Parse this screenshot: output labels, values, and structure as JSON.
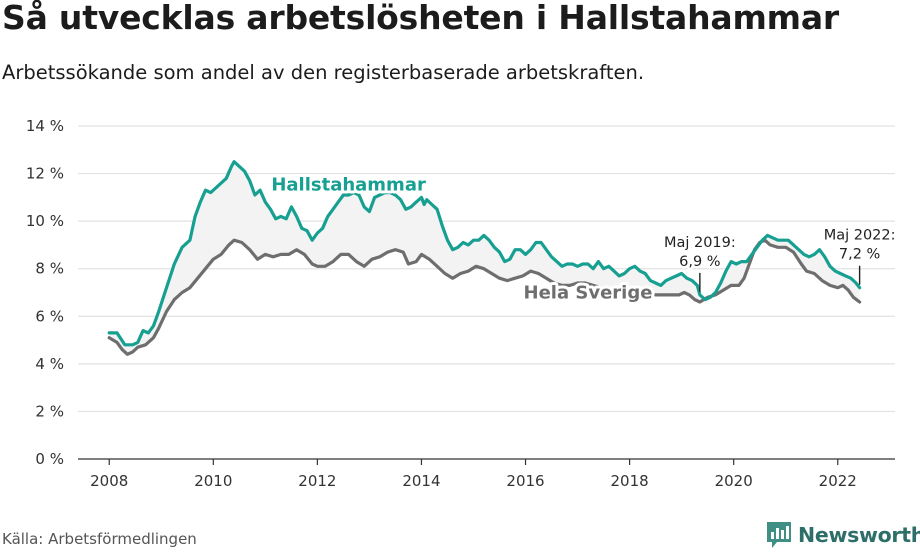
{
  "title": "Så utvecklas arbetslösheten i Hallstahammar",
  "subtitle": "Arbetssökande som andel av den registerbaserade arbetskraften.",
  "source": "Källa: Arbetsförmedlingen",
  "brand": "Newsworthy",
  "colors": {
    "local": "#17a092",
    "national": "#6e6e6e",
    "fill": "#f3f3f3",
    "grid": "#e2e2e2",
    "brand": "#2d6e68"
  },
  "chart_data": {
    "type": "line",
    "title": "Så utvecklas arbetslösheten i Hallstahammar",
    "ylim": [
      0,
      14
    ],
    "y_ticks": [
      {
        "value": 0,
        "label": "0 %"
      },
      {
        "value": 2,
        "label": "2 %"
      },
      {
        "value": 4,
        "label": "4 %"
      },
      {
        "value": 6,
        "label": "6 %"
      },
      {
        "value": 8,
        "label": "8 %"
      },
      {
        "value": 10,
        "label": "10 %"
      },
      {
        "value": 12,
        "label": "12 %"
      },
      {
        "value": 14,
        "label": "14 %"
      }
    ],
    "xlim": [
      2007.4,
      2023.1
    ],
    "x_ticks": [
      {
        "value": 2008,
        "label": "2008"
      },
      {
        "value": 2010,
        "label": "2010"
      },
      {
        "value": 2012,
        "label": "2012"
      },
      {
        "value": 2014,
        "label": "2014"
      },
      {
        "value": 2016,
        "label": "2016"
      },
      {
        "value": 2018,
        "label": "2018"
      },
      {
        "value": 2020,
        "label": "2020"
      },
      {
        "value": 2022,
        "label": "2022"
      }
    ],
    "grid": true,
    "series": [
      {
        "name": "Hallstahammar",
        "label": "Hallstahammar",
        "points": [
          [
            2008.0,
            5.3
          ],
          [
            2008.15,
            5.3
          ],
          [
            2008.3,
            4.8
          ],
          [
            2008.45,
            4.8
          ],
          [
            2008.55,
            4.9
          ],
          [
            2008.65,
            5.4
          ],
          [
            2008.75,
            5.3
          ],
          [
            2008.85,
            5.6
          ],
          [
            2008.95,
            6.2
          ],
          [
            2009.1,
            7.2
          ],
          [
            2009.25,
            8.2
          ],
          [
            2009.4,
            8.9
          ],
          [
            2009.55,
            9.2
          ],
          [
            2009.65,
            10.2
          ],
          [
            2009.75,
            10.8
          ],
          [
            2009.85,
            11.3
          ],
          [
            2009.95,
            11.2
          ],
          [
            2010.1,
            11.5
          ],
          [
            2010.25,
            11.8
          ],
          [
            2010.35,
            12.3
          ],
          [
            2010.4,
            12.5
          ],
          [
            2010.5,
            12.3
          ],
          [
            2010.6,
            12.1
          ],
          [
            2010.7,
            11.7
          ],
          [
            2010.8,
            11.1
          ],
          [
            2010.9,
            11.3
          ],
          [
            2011.0,
            10.8
          ],
          [
            2011.1,
            10.5
          ],
          [
            2011.2,
            10.1
          ],
          [
            2011.3,
            10.2
          ],
          [
            2011.4,
            10.1
          ],
          [
            2011.5,
            10.6
          ],
          [
            2011.6,
            10.2
          ],
          [
            2011.7,
            9.7
          ],
          [
            2011.8,
            9.6
          ],
          [
            2011.9,
            9.2
          ],
          [
            2012.0,
            9.5
          ],
          [
            2012.1,
            9.7
          ],
          [
            2012.2,
            10.2
          ],
          [
            2012.3,
            10.5
          ],
          [
            2012.4,
            10.8
          ],
          [
            2012.5,
            11.1
          ],
          [
            2012.6,
            11.1
          ],
          [
            2012.7,
            11.2
          ],
          [
            2012.8,
            11.1
          ],
          [
            2012.9,
            10.6
          ],
          [
            2013.0,
            10.4
          ],
          [
            2013.1,
            11.0
          ],
          [
            2013.2,
            11.1
          ],
          [
            2013.3,
            11.2
          ],
          [
            2013.4,
            11.2
          ],
          [
            2013.5,
            11.1
          ],
          [
            2013.6,
            10.9
          ],
          [
            2013.7,
            10.5
          ],
          [
            2013.8,
            10.6
          ],
          [
            2013.9,
            10.8
          ],
          [
            2014.0,
            11.0
          ],
          [
            2014.05,
            10.7
          ],
          [
            2014.1,
            10.9
          ],
          [
            2014.2,
            10.7
          ],
          [
            2014.3,
            10.5
          ],
          [
            2014.4,
            9.8
          ],
          [
            2014.5,
            9.2
          ],
          [
            2014.6,
            8.8
          ],
          [
            2014.7,
            8.9
          ],
          [
            2014.8,
            9.1
          ],
          [
            2014.9,
            9.0
          ],
          [
            2015.0,
            9.2
          ],
          [
            2015.1,
            9.2
          ],
          [
            2015.2,
            9.4
          ],
          [
            2015.3,
            9.2
          ],
          [
            2015.4,
            8.9
          ],
          [
            2015.5,
            8.7
          ],
          [
            2015.6,
            8.3
          ],
          [
            2015.7,
            8.4
          ],
          [
            2015.8,
            8.8
          ],
          [
            2015.9,
            8.8
          ],
          [
            2016.0,
            8.6
          ],
          [
            2016.1,
            8.8
          ],
          [
            2016.2,
            9.1
          ],
          [
            2016.3,
            9.1
          ],
          [
            2016.4,
            8.8
          ],
          [
            2016.5,
            8.5
          ],
          [
            2016.6,
            8.3
          ],
          [
            2016.7,
            8.1
          ],
          [
            2016.8,
            8.2
          ],
          [
            2016.9,
            8.2
          ],
          [
            2017.0,
            8.1
          ],
          [
            2017.1,
            8.2
          ],
          [
            2017.2,
            8.2
          ],
          [
            2017.3,
            8.0
          ],
          [
            2017.4,
            8.3
          ],
          [
            2017.5,
            8.0
          ],
          [
            2017.6,
            8.1
          ],
          [
            2017.7,
            7.9
          ],
          [
            2017.8,
            7.7
          ],
          [
            2017.9,
            7.8
          ],
          [
            2018.0,
            8.0
          ],
          [
            2018.1,
            8.1
          ],
          [
            2018.2,
            7.9
          ],
          [
            2018.3,
            7.8
          ],
          [
            2018.4,
            7.5
          ],
          [
            2018.5,
            7.4
          ],
          [
            2018.6,
            7.3
          ],
          [
            2018.7,
            7.5
          ],
          [
            2018.8,
            7.6
          ],
          [
            2018.9,
            7.7
          ],
          [
            2019.0,
            7.8
          ],
          [
            2019.1,
            7.6
          ],
          [
            2019.2,
            7.5
          ],
          [
            2019.3,
            7.3
          ],
          [
            2019.35,
            6.9
          ],
          [
            2019.45,
            6.7
          ],
          [
            2019.55,
            6.8
          ],
          [
            2019.65,
            7.0
          ],
          [
            2019.75,
            7.4
          ],
          [
            2019.85,
            7.9
          ],
          [
            2019.95,
            8.3
          ],
          [
            2020.05,
            8.2
          ],
          [
            2020.15,
            8.3
          ],
          [
            2020.25,
            8.3
          ],
          [
            2020.35,
            8.6
          ],
          [
            2020.45,
            8.9
          ],
          [
            2020.55,
            9.2
          ],
          [
            2020.65,
            9.4
          ],
          [
            2020.75,
            9.3
          ],
          [
            2020.85,
            9.2
          ],
          [
            2020.95,
            9.2
          ],
          [
            2021.05,
            9.2
          ],
          [
            2021.15,
            9.0
          ],
          [
            2021.25,
            8.8
          ],
          [
            2021.35,
            8.6
          ],
          [
            2021.45,
            8.5
          ],
          [
            2021.55,
            8.6
          ],
          [
            2021.65,
            8.8
          ],
          [
            2021.75,
            8.5
          ],
          [
            2021.85,
            8.1
          ],
          [
            2021.95,
            7.9
          ],
          [
            2022.05,
            7.8
          ],
          [
            2022.15,
            7.7
          ],
          [
            2022.25,
            7.6
          ],
          [
            2022.35,
            7.4
          ],
          [
            2022.42,
            7.2
          ]
        ]
      },
      {
        "name": "Hela Sverige",
        "label": "Hela Sverige",
        "points": [
          [
            2008.0,
            5.1
          ],
          [
            2008.15,
            4.9
          ],
          [
            2008.25,
            4.6
          ],
          [
            2008.35,
            4.4
          ],
          [
            2008.45,
            4.5
          ],
          [
            2008.55,
            4.7
          ],
          [
            2008.7,
            4.8
          ],
          [
            2008.85,
            5.1
          ],
          [
            2008.95,
            5.5
          ],
          [
            2009.1,
            6.2
          ],
          [
            2009.25,
            6.7
          ],
          [
            2009.4,
            7.0
          ],
          [
            2009.55,
            7.2
          ],
          [
            2009.7,
            7.6
          ],
          [
            2009.85,
            8.0
          ],
          [
            2010.0,
            8.4
          ],
          [
            2010.15,
            8.6
          ],
          [
            2010.3,
            9.0
          ],
          [
            2010.4,
            9.2
          ],
          [
            2010.55,
            9.1
          ],
          [
            2010.7,
            8.8
          ],
          [
            2010.85,
            8.4
          ],
          [
            2011.0,
            8.6
          ],
          [
            2011.15,
            8.5
          ],
          [
            2011.3,
            8.6
          ],
          [
            2011.45,
            8.6
          ],
          [
            2011.6,
            8.8
          ],
          [
            2011.75,
            8.6
          ],
          [
            2011.9,
            8.2
          ],
          [
            2012.0,
            8.1
          ],
          [
            2012.15,
            8.1
          ],
          [
            2012.3,
            8.3
          ],
          [
            2012.45,
            8.6
          ],
          [
            2012.6,
            8.6
          ],
          [
            2012.75,
            8.3
          ],
          [
            2012.9,
            8.1
          ],
          [
            2013.05,
            8.4
          ],
          [
            2013.2,
            8.5
          ],
          [
            2013.35,
            8.7
          ],
          [
            2013.5,
            8.8
          ],
          [
            2013.65,
            8.7
          ],
          [
            2013.75,
            8.2
          ],
          [
            2013.9,
            8.3
          ],
          [
            2014.0,
            8.6
          ],
          [
            2014.15,
            8.4
          ],
          [
            2014.3,
            8.1
          ],
          [
            2014.45,
            7.8
          ],
          [
            2014.6,
            7.6
          ],
          [
            2014.75,
            7.8
          ],
          [
            2014.9,
            7.9
          ],
          [
            2015.05,
            8.1
          ],
          [
            2015.2,
            8.0
          ],
          [
            2015.35,
            7.8
          ],
          [
            2015.5,
            7.6
          ],
          [
            2015.65,
            7.5
          ],
          [
            2015.8,
            7.6
          ],
          [
            2015.95,
            7.7
          ],
          [
            2016.1,
            7.9
          ],
          [
            2016.25,
            7.8
          ],
          [
            2016.4,
            7.6
          ],
          [
            2016.55,
            7.4
          ],
          [
            2016.7,
            7.3
          ],
          [
            2016.85,
            7.3
          ],
          [
            2017.0,
            7.4
          ],
          [
            2017.15,
            7.4
          ],
          [
            2017.3,
            7.3
          ],
          [
            2017.45,
            7.2
          ],
          [
            2017.6,
            7.1
          ],
          [
            2017.75,
            7.0
          ],
          [
            2017.9,
            6.9
          ],
          [
            2018.05,
            7.0
          ],
          [
            2018.2,
            7.1
          ],
          [
            2018.35,
            7.0
          ],
          [
            2018.5,
            6.9
          ],
          [
            2018.65,
            6.9
          ],
          [
            2018.8,
            6.9
          ],
          [
            2018.95,
            6.9
          ],
          [
            2019.05,
            7.0
          ],
          [
            2019.15,
            6.9
          ],
          [
            2019.25,
            6.7
          ],
          [
            2019.35,
            6.6
          ],
          [
            2019.5,
            6.8
          ],
          [
            2019.65,
            6.9
          ],
          [
            2019.8,
            7.1
          ],
          [
            2019.95,
            7.3
          ],
          [
            2020.1,
            7.3
          ],
          [
            2020.2,
            7.6
          ],
          [
            2020.3,
            8.2
          ],
          [
            2020.4,
            8.8
          ],
          [
            2020.5,
            9.1
          ],
          [
            2020.6,
            9.2
          ],
          [
            2020.7,
            9.0
          ],
          [
            2020.85,
            8.9
          ],
          [
            2021.0,
            8.9
          ],
          [
            2021.15,
            8.7
          ],
          [
            2021.3,
            8.2
          ],
          [
            2021.4,
            7.9
          ],
          [
            2021.55,
            7.8
          ],
          [
            2021.7,
            7.5
          ],
          [
            2021.85,
            7.3
          ],
          [
            2022.0,
            7.2
          ],
          [
            2022.1,
            7.3
          ],
          [
            2022.2,
            7.1
          ],
          [
            2022.3,
            6.8
          ],
          [
            2022.42,
            6.6
          ]
        ]
      }
    ],
    "annotations": [
      {
        "id": "maj2019",
        "lines": [
          "Maj 2019:",
          "6,9 %"
        ],
        "x": 2019.35,
        "y": 6.9
      },
      {
        "id": "maj2022",
        "lines": [
          "Maj 2022:",
          "7,2 %"
        ],
        "x": 2022.42,
        "y": 7.2
      }
    ]
  }
}
